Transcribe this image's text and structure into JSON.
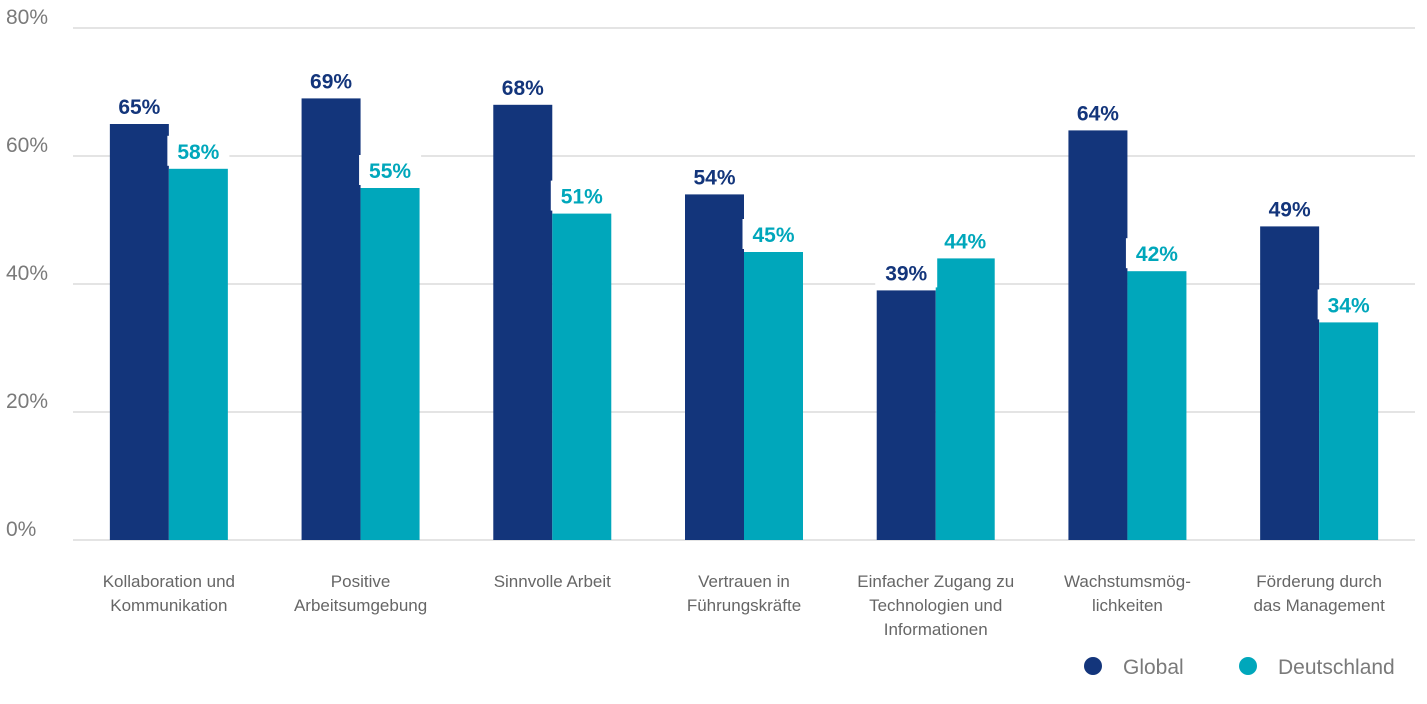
{
  "colors": {
    "global": "#13357b",
    "deutschland": "#00a7bb",
    "grid": "#c9c9c9",
    "axis_text": "#7a7a7a"
  },
  "chart_data": {
    "type": "bar",
    "categories": [
      [
        "Kollaboration und",
        "Kommunikation"
      ],
      [
        "Positive",
        "Arbeitsumgebung"
      ],
      [
        "Sinnvolle Arbeit"
      ],
      [
        "Vertrauen in",
        "Führungskräfte"
      ],
      [
        "Einfacher Zugang zu",
        "Technologien und",
        "Informationen"
      ],
      [
        "Wachstumsmög-",
        "lichkeiten"
      ],
      [
        "Förderung durch",
        "das Management"
      ]
    ],
    "series": [
      {
        "name": "Global",
        "values": [
          65,
          69,
          68,
          54,
          39,
          64,
          49
        ],
        "labels": [
          "65%",
          "69%",
          "68%",
          "54%",
          "39%",
          "64%",
          "49%"
        ]
      },
      {
        "name": "Deutschland",
        "values": [
          58,
          55,
          51,
          45,
          44,
          42,
          34
        ],
        "labels": [
          "58%",
          "55%",
          "51%",
          "45%",
          "44%",
          "42%",
          "34%"
        ]
      }
    ],
    "yticks": [
      0,
      20,
      40,
      60,
      80
    ],
    "ytick_labels": [
      "0%",
      "20%",
      "40%",
      "60%",
      "80%"
    ],
    "ylim": [
      0,
      80
    ],
    "grid": true,
    "legend_position": "bottom-right"
  }
}
